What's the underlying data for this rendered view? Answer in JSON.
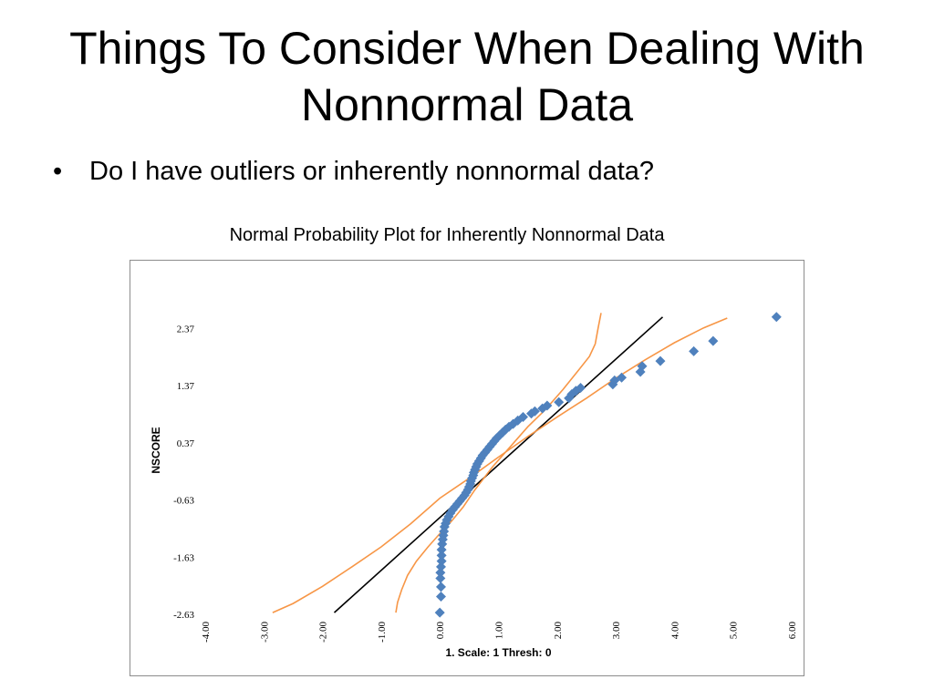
{
  "slide": {
    "title_line1": "Things To Consider When Dealing With",
    "title_line2": "Nonnormal Data",
    "bullet_marker": "•",
    "bullet": "Do I have outliers or inherently nonnormal data?"
  },
  "chart_data": {
    "type": "scatter",
    "title": "Normal Probability Plot for Inherently Nonnormal Data",
    "xlabel": "1. Scale: 1 Thresh: 0",
    "ylabel": "NSCORE",
    "xlim": [
      -4.0,
      6.0
    ],
    "ylim": [
      -2.63,
      2.63
    ],
    "x_ticks": [
      "-4.00",
      "-3.00",
      "-2.00",
      "-1.00",
      "0.00",
      "1.00",
      "2.00",
      "3.00",
      "4.00",
      "5.00",
      "6.00"
    ],
    "y_ticks": [
      "2.37",
      "1.37",
      "0.37",
      "-0.63",
      "-1.63",
      "-2.63"
    ],
    "grid": false,
    "colors": {
      "points": "#4f81bd",
      "fit_line": "#000000",
      "bands": "#f79646"
    },
    "series": [
      {
        "kind": "points",
        "x": [
          0.0,
          0.02,
          0.02,
          0.01,
          0.01,
          0.02,
          0.03,
          0.03,
          0.03,
          0.04,
          0.05,
          0.06,
          0.07,
          0.08,
          0.1,
          0.12,
          0.15,
          0.18,
          0.22,
          0.26,
          0.3,
          0.34,
          0.38,
          0.42,
          0.45,
          0.48,
          0.5,
          0.52,
          0.53,
          0.55,
          0.57,
          0.58,
          0.6,
          0.62,
          0.64,
          0.67,
          0.7,
          0.73,
          0.77,
          0.81,
          0.85,
          0.89,
          0.93,
          0.97,
          1.02,
          1.07,
          1.12,
          1.18,
          1.25,
          1.33,
          1.42,
          1.56,
          1.62,
          1.75,
          1.83,
          2.03,
          2.2,
          2.25,
          2.32,
          2.4,
          2.95,
          2.98,
          3.1,
          3.42,
          3.45,
          3.76,
          4.33,
          4.66,
          5.74
        ],
        "y": [
          -2.6,
          -2.32,
          -2.15,
          -2.0,
          -1.9,
          -1.8,
          -1.7,
          -1.6,
          -1.5,
          -1.4,
          -1.32,
          -1.25,
          -1.18,
          -1.1,
          -1.04,
          -0.98,
          -0.92,
          -0.86,
          -0.8,
          -0.75,
          -0.7,
          -0.65,
          -0.6,
          -0.55,
          -0.5,
          -0.45,
          -0.4,
          -0.35,
          -0.3,
          -0.25,
          -0.2,
          -0.15,
          -0.1,
          -0.05,
          0.0,
          0.05,
          0.1,
          0.15,
          0.2,
          0.25,
          0.3,
          0.35,
          0.4,
          0.45,
          0.5,
          0.55,
          0.6,
          0.65,
          0.7,
          0.76,
          0.82,
          0.88,
          0.92,
          0.97,
          1.02,
          1.08,
          1.15,
          1.22,
          1.28,
          1.33,
          1.39,
          1.46,
          1.51,
          1.61,
          1.71,
          1.8,
          1.97,
          2.15,
          2.57
        ]
      },
      {
        "kind": "line",
        "role": "fit",
        "x": [
          -1.8,
          3.8
        ],
        "y": [
          -2.6,
          2.57
        ]
      },
      {
        "kind": "line",
        "role": "upper-band",
        "x": [
          -0.75,
          -0.72,
          -0.65,
          -0.55,
          -0.4,
          -0.2,
          0.0,
          0.2,
          0.4,
          0.6,
          0.9,
          1.2,
          1.5,
          1.8,
          2.1,
          2.35,
          2.55,
          2.65,
          2.7,
          2.75
        ],
        "y": [
          -2.6,
          -2.42,
          -2.2,
          -1.95,
          -1.7,
          -1.45,
          -1.22,
          -1.0,
          -0.75,
          -0.45,
          -0.05,
          0.3,
          0.65,
          0.95,
          1.3,
          1.62,
          1.88,
          2.1,
          2.38,
          2.64
        ]
      },
      {
        "kind": "line",
        "role": "lower-band",
        "x": [
          -2.85,
          -2.5,
          -2.0,
          -1.5,
          -1.0,
          -0.5,
          0.0,
          0.5,
          1.0,
          1.5,
          2.0,
          2.5,
          3.0,
          3.5,
          4.0,
          4.5,
          4.9
        ],
        "y": [
          -2.6,
          -2.44,
          -2.14,
          -1.8,
          -1.45,
          -1.05,
          -0.6,
          -0.25,
          0.12,
          0.48,
          0.82,
          1.15,
          1.5,
          1.82,
          2.12,
          2.38,
          2.55
        ]
      }
    ]
  }
}
